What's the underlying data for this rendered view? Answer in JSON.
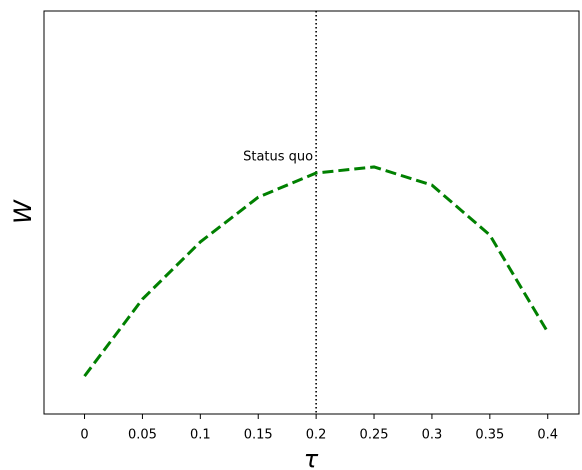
{
  "chart_data": {
    "type": "line",
    "x": [
      0,
      0.05,
      0.1,
      0.15,
      0.2,
      0.25,
      0.3,
      0.35,
      0.4
    ],
    "series": [
      {
        "color": "#008000",
        "values": [
          0.094,
          0.285,
          0.427,
          0.538,
          0.598,
          0.613,
          0.568,
          0.444,
          0.203
        ]
      }
    ],
    "xlim": [
      -0.035,
      0.427
    ],
    "ylim": [
      0,
      1
    ],
    "xticks": [
      0,
      0.05,
      0.1,
      0.15,
      0.2,
      0.25,
      0.3,
      0.35,
      0.4
    ],
    "xlabel": "τ",
    "ylabel": "W",
    "vline": 0.2,
    "annotation": "Status quo"
  }
}
